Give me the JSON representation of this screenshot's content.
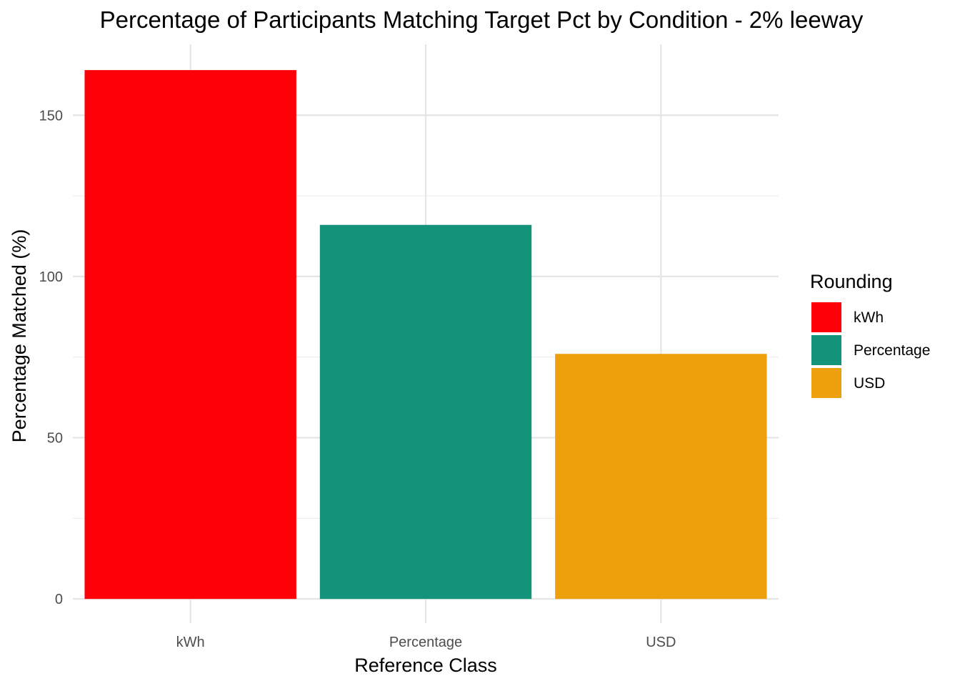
{
  "chart_data": {
    "type": "bar",
    "title": "Percentage of Participants Matching Target Pct by Condition - 2% leeway",
    "xlabel": "Reference Class",
    "ylabel": "Percentage Matched (%)",
    "categories": [
      "kWh",
      "Percentage",
      "USD"
    ],
    "values": [
      164,
      116,
      76
    ],
    "colors": [
      "#fe0007",
      "#139379",
      "#eea00c"
    ],
    "ylim": [
      -7.5,
      172
    ],
    "yticks": [
      0,
      50,
      100,
      150
    ],
    "yticks_minor": [
      25,
      75,
      125
    ],
    "ytick_labels": [
      "0",
      "50",
      "100",
      "150"
    ],
    "legend": {
      "title": "Rounding",
      "position": "right",
      "entries": [
        {
          "label": "kWh",
          "color": "#fe0007"
        },
        {
          "label": "Percentage",
          "color": "#139379"
        },
        {
          "label": "USD",
          "color": "#eea00c"
        }
      ]
    }
  }
}
